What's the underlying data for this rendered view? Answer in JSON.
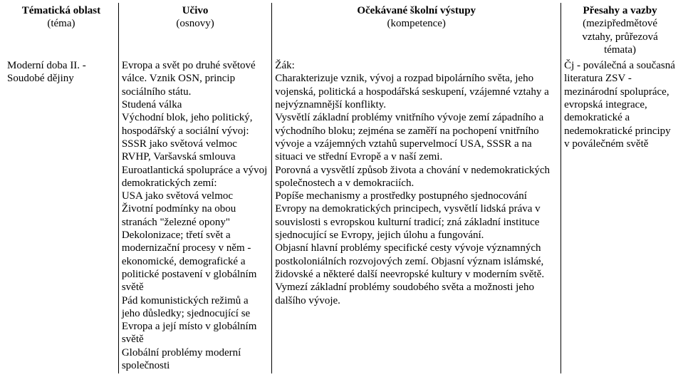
{
  "header": {
    "col1_line1": "Tématická oblast",
    "col1_line2": "(téma)",
    "col2_line1": "Učivo",
    "col2_line2": "(osnovy)",
    "col3_line1": "Očekávané školní výstupy",
    "col3_line2": "(kompetence)",
    "col4_line1": "Přesahy a vazby",
    "col4_line2": "(mezipředmětové",
    "col4_line3": "vztahy, průřezová",
    "col4_line4": "témata)"
  },
  "row": {
    "theme": "Moderní doba II. - Soudobé dějiny",
    "ucivo": {
      "p1": "Evropa a svět po druhé světové válce. Vznik OSN, princip sociálního státu.",
      "p2": "Studená válka",
      "p3": "Východní blok, jeho politický, hospodářský a sociální vývoj:",
      "p4": "SSSR jako světová velmoc",
      "p5": "RVHP, Varšavská smlouva",
      "p6": "Euroatlantická spolupráce a vývoj demokratických zemí:",
      "p7": "USA jako světová velmoc",
      "p8": "Životní podmínky na obou stranách \"železné opony\"",
      "p9": "Dekolonizace; třetí svět a modernizační procesy v něm - ekonomické, demografické a politické postavení v globálním světě",
      "p10": "Pád komunistických režimů a jeho důsledky; sjednocující se Evropa a její místo v globálním světě",
      "p11": "Globální problémy moderní společnosti"
    },
    "vystupy": {
      "lead": "Žák:",
      "p1": "Charakterizuje vznik, vývoj a rozpad bipolárního světa, jeho vojenská, politická a hospodářská seskupení, vzájemné vztahy a nejvýznamnější konflikty.",
      "p2": "Vysvětlí základní problémy vnitřního vývoje zemí západního a východního bloku; zejména se zaměří na pochopení vnitřního vývoje a vzájemných vztahů supervelmocí USA, SSSR a na situaci ve střední Evropě a v naší zemi.",
      "p3": "Porovná a vysvětlí způsob života a chování v nedemokratických společnostech a v demokraciích.",
      "p4": "Popíše mechanismy a prostředky postupného sjednocování Evropy na demokratických principech, vysvětlí lidská práva v souvislosti s evropskou kulturní tradicí; zná základní instituce sjednocující se Evropy, jejich úlohu a fungování.",
      "p5": "Objasní hlavní problémy specifické cesty vývoje významných postkoloniálních rozvojových zemí. Objasní význam islámské, židovské a některé další neevropské kultury v moderním světě.",
      "p6": "Vymezí základní problémy soudobého světa a možnosti jeho dalšího vývoje."
    },
    "presahy": "Čj - poválečná a současná literatura ZSV - mezinárodní spolupráce, evropská integrace, demokratické a nedemokratické principy v poválečném světě"
  }
}
